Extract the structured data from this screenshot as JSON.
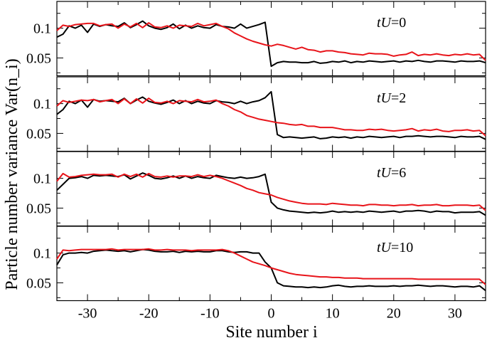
{
  "chart_data": {
    "type": "line",
    "xlabel": "Site number i",
    "ylabel": "Particle number variance Var(n_i)",
    "xlim": [
      -35,
      35
    ],
    "ylim": [
      0.02,
      0.145
    ],
    "x_ticks": [
      "-30",
      "-20",
      "-10",
      "0",
      "10",
      "20",
      "30"
    ],
    "y_ticks": [
      "0.05",
      "0.1"
    ],
    "colors": {
      "black": "#000000",
      "red": "#e8141a"
    },
    "x": [
      -35,
      -34,
      -33,
      -32,
      -31,
      -30,
      -29,
      -28,
      -27,
      -26,
      -25,
      -24,
      -23,
      -22,
      -21,
      -20,
      -19,
      -18,
      -17,
      -16,
      -15,
      -14,
      -13,
      -12,
      -11,
      -10,
      -9,
      -8,
      -7,
      -6,
      -5,
      -4,
      -3,
      -2,
      -1,
      0,
      1,
      2,
      3,
      4,
      5,
      6,
      7,
      8,
      9,
      10,
      11,
      12,
      13,
      14,
      15,
      16,
      17,
      18,
      19,
      20,
      21,
      22,
      23,
      24,
      25,
      26,
      27,
      28,
      29,
      30,
      31,
      32,
      33,
      34,
      35
    ],
    "panels": [
      {
        "label": "tU=0",
        "series": [
          {
            "color": "black",
            "values": [
              0.085,
              0.09,
              0.104,
              0.1,
              0.105,
              0.093,
              0.107,
              0.103,
              0.106,
              0.104,
              0.103,
              0.109,
              0.101,
              0.106,
              0.112,
              0.104,
              0.1,
              0.098,
              0.101,
              0.107,
              0.099,
              0.105,
              0.1,
              0.104,
              0.101,
              0.1,
              0.106,
              0.103,
              0.102,
              0.1,
              0.107,
              0.1,
              0.103,
              0.106,
              0.11,
              0.036,
              0.042,
              0.044,
              0.043,
              0.043,
              0.042,
              0.042,
              0.044,
              0.041,
              0.042,
              0.044,
              0.043,
              0.045,
              0.042,
              0.044,
              0.043,
              0.045,
              0.044,
              0.043,
              0.044,
              0.045,
              0.043,
              0.045,
              0.044,
              0.046,
              0.044,
              0.043,
              0.045,
              0.045,
              0.044,
              0.043,
              0.045,
              0.044,
              0.044,
              0.045,
              0.042
            ]
          },
          {
            "color": "red",
            "values": [
              0.096,
              0.105,
              0.103,
              0.106,
              0.107,
              0.108,
              0.108,
              0.104,
              0.106,
              0.107,
              0.1,
              0.107,
              0.102,
              0.108,
              0.101,
              0.109,
              0.102,
              0.101,
              0.104,
              0.1,
              0.105,
              0.104,
              0.103,
              0.108,
              0.104,
              0.106,
              0.108,
              0.103,
              0.099,
              0.092,
              0.087,
              0.082,
              0.078,
              0.075,
              0.072,
              0.07,
              0.073,
              0.071,
              0.068,
              0.065,
              0.068,
              0.064,
              0.063,
              0.06,
              0.062,
              0.062,
              0.06,
              0.059,
              0.057,
              0.056,
              0.055,
              0.058,
              0.057,
              0.057,
              0.056,
              0.053,
              0.055,
              0.056,
              0.06,
              0.054,
              0.056,
              0.055,
              0.057,
              0.055,
              0.054,
              0.056,
              0.055,
              0.057,
              0.055,
              0.056,
              0.046
            ]
          }
        ]
      },
      {
        "label": "tU=2",
        "series": [
          {
            "color": "black",
            "values": [
              0.082,
              0.09,
              0.104,
              0.1,
              0.106,
              0.094,
              0.107,
              0.104,
              0.105,
              0.104,
              0.103,
              0.109,
              0.1,
              0.106,
              0.111,
              0.104,
              0.101,
              0.099,
              0.102,
              0.106,
              0.1,
              0.105,
              0.1,
              0.104,
              0.101,
              0.1,
              0.105,
              0.103,
              0.102,
              0.1,
              0.104,
              0.1,
              0.103,
              0.105,
              0.11,
              0.12,
              0.048,
              0.043,
              0.044,
              0.043,
              0.042,
              0.043,
              0.044,
              0.041,
              0.042,
              0.044,
              0.043,
              0.044,
              0.042,
              0.044,
              0.043,
              0.045,
              0.044,
              0.043,
              0.044,
              0.045,
              0.043,
              0.045,
              0.045,
              0.046,
              0.045,
              0.044,
              0.045,
              0.045,
              0.044,
              0.043,
              0.045,
              0.044,
              0.044,
              0.045,
              0.04
            ]
          },
          {
            "color": "red",
            "values": [
              0.096,
              0.105,
              0.102,
              0.104,
              0.106,
              0.105,
              0.107,
              0.103,
              0.105,
              0.107,
              0.1,
              0.108,
              0.1,
              0.108,
              0.101,
              0.109,
              0.102,
              0.101,
              0.104,
              0.1,
              0.105,
              0.104,
              0.103,
              0.107,
              0.103,
              0.104,
              0.106,
              0.1,
              0.096,
              0.09,
              0.086,
              0.08,
              0.077,
              0.074,
              0.072,
              0.07,
              0.068,
              0.067,
              0.065,
              0.064,
              0.065,
              0.062,
              0.062,
              0.06,
              0.06,
              0.06,
              0.058,
              0.056,
              0.056,
              0.055,
              0.055,
              0.057,
              0.056,
              0.057,
              0.055,
              0.054,
              0.055,
              0.056,
              0.058,
              0.054,
              0.056,
              0.055,
              0.057,
              0.054,
              0.053,
              0.055,
              0.055,
              0.056,
              0.054,
              0.055,
              0.046
            ]
          }
        ]
      },
      {
        "label": "tU=6",
        "series": [
          {
            "color": "black",
            "values": [
              0.08,
              0.09,
              0.1,
              0.101,
              0.103,
              0.1,
              0.105,
              0.104,
              0.105,
              0.104,
              0.103,
              0.106,
              0.099,
              0.104,
              0.109,
              0.105,
              0.1,
              0.099,
              0.101,
              0.104,
              0.1,
              0.104,
              0.1,
              0.103,
              0.101,
              0.1,
              0.105,
              0.103,
              0.101,
              0.1,
              0.102,
              0.1,
              0.101,
              0.103,
              0.107,
              0.06,
              0.05,
              0.047,
              0.045,
              0.044,
              0.043,
              0.042,
              0.043,
              0.042,
              0.043,
              0.045,
              0.043,
              0.044,
              0.043,
              0.044,
              0.043,
              0.045,
              0.044,
              0.043,
              0.044,
              0.045,
              0.043,
              0.045,
              0.045,
              0.046,
              0.045,
              0.043,
              0.045,
              0.044,
              0.044,
              0.042,
              0.043,
              0.043,
              0.043,
              0.044,
              0.038
            ]
          },
          {
            "color": "red",
            "values": [
              0.095,
              0.108,
              0.102,
              0.103,
              0.105,
              0.106,
              0.107,
              0.106,
              0.106,
              0.107,
              0.102,
              0.107,
              0.103,
              0.107,
              0.102,
              0.108,
              0.103,
              0.102,
              0.104,
              0.102,
              0.104,
              0.104,
              0.103,
              0.106,
              0.103,
              0.105,
              0.103,
              0.1,
              0.096,
              0.092,
              0.088,
              0.083,
              0.08,
              0.076,
              0.074,
              0.072,
              0.068,
              0.065,
              0.062,
              0.06,
              0.058,
              0.057,
              0.057,
              0.057,
              0.056,
              0.058,
              0.057,
              0.056,
              0.055,
              0.055,
              0.054,
              0.056,
              0.056,
              0.055,
              0.055,
              0.054,
              0.055,
              0.055,
              0.056,
              0.054,
              0.055,
              0.055,
              0.056,
              0.054,
              0.054,
              0.055,
              0.055,
              0.055,
              0.054,
              0.055,
              0.046
            ]
          }
        ]
      },
      {
        "label": "tU=10",
        "series": [
          {
            "color": "black",
            "values": [
              0.08,
              0.097,
              0.1,
              0.1,
              0.101,
              0.1,
              0.103,
              0.104,
              0.105,
              0.104,
              0.103,
              0.104,
              0.102,
              0.104,
              0.106,
              0.105,
              0.103,
              0.102,
              0.102,
              0.103,
              0.101,
              0.103,
              0.102,
              0.103,
              0.102,
              0.102,
              0.104,
              0.104,
              0.102,
              0.101,
              0.102,
              0.102,
              0.1,
              0.1,
              0.085,
              0.075,
              0.05,
              0.045,
              0.044,
              0.043,
              0.043,
              0.042,
              0.043,
              0.042,
              0.043,
              0.045,
              0.046,
              0.044,
              0.043,
              0.044,
              0.044,
              0.045,
              0.044,
              0.044,
              0.044,
              0.045,
              0.044,
              0.045,
              0.045,
              0.046,
              0.045,
              0.044,
              0.045,
              0.045,
              0.044,
              0.043,
              0.044,
              0.044,
              0.043,
              0.045,
              0.037
            ]
          },
          {
            "color": "red",
            "values": [
              0.09,
              0.105,
              0.104,
              0.105,
              0.106,
              0.106,
              0.106,
              0.106,
              0.106,
              0.107,
              0.105,
              0.106,
              0.106,
              0.106,
              0.106,
              0.107,
              0.105,
              0.105,
              0.106,
              0.105,
              0.105,
              0.105,
              0.104,
              0.105,
              0.105,
              0.105,
              0.105,
              0.106,
              0.104,
              0.1,
              0.095,
              0.09,
              0.085,
              0.082,
              0.079,
              0.075,
              0.072,
              0.069,
              0.066,
              0.064,
              0.063,
              0.062,
              0.061,
              0.06,
              0.06,
              0.059,
              0.059,
              0.058,
              0.058,
              0.058,
              0.057,
              0.057,
              0.057,
              0.057,
              0.057,
              0.057,
              0.057,
              0.057,
              0.057,
              0.056,
              0.056,
              0.056,
              0.056,
              0.056,
              0.056,
              0.056,
              0.056,
              0.056,
              0.056,
              0.056,
              0.047
            ]
          }
        ]
      }
    ]
  }
}
